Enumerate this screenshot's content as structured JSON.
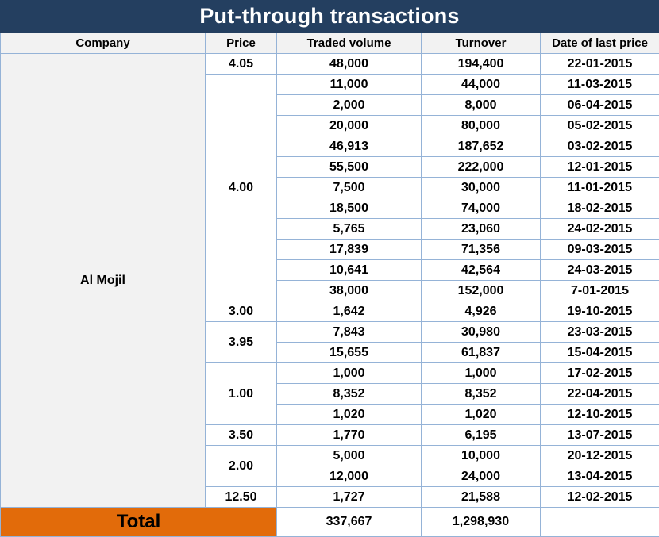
{
  "title": "Put-through transactions",
  "headers": {
    "company": "Company",
    "price": "Price",
    "volume": "Traded volume",
    "turnover": "Turnover",
    "date": "Date of last price"
  },
  "company": "Al Mojil",
  "groups": [
    {
      "price": "4.05",
      "rows": [
        [
          "48,000",
          "194,400",
          "22-01-2015"
        ]
      ]
    },
    {
      "price": "4.00",
      "rows": [
        [
          "11,000",
          "44,000",
          "11-03-2015"
        ],
        [
          "2,000",
          "8,000",
          "06-04-2015"
        ],
        [
          "20,000",
          "80,000",
          "05-02-2015"
        ],
        [
          "46,913",
          "187,652",
          "03-02-2015"
        ],
        [
          "55,500",
          "222,000",
          "12-01-2015"
        ],
        [
          "7,500",
          "30,000",
          "11-01-2015"
        ],
        [
          "18,500",
          "74,000",
          "18-02-2015"
        ],
        [
          "5,765",
          "23,060",
          "24-02-2015"
        ],
        [
          "17,839",
          "71,356",
          "09-03-2015"
        ],
        [
          "10,641",
          "42,564",
          "24-03-2015"
        ],
        [
          "38,000",
          "152,000",
          "7-01-2015"
        ]
      ]
    },
    {
      "price": "3.00",
      "rows": [
        [
          "1,642",
          "4,926",
          "19-10-2015"
        ]
      ]
    },
    {
      "price": "3.95",
      "rows": [
        [
          "7,843",
          "30,980",
          "23-03-2015"
        ],
        [
          "15,655",
          "61,837",
          "15-04-2015"
        ]
      ]
    },
    {
      "price": "1.00",
      "rows": [
        [
          "1,000",
          "1,000",
          "17-02-2015"
        ],
        [
          "8,352",
          "8,352",
          "22-04-2015"
        ],
        [
          "1,020",
          "1,020",
          "12-10-2015"
        ]
      ]
    },
    {
      "price": "3.50",
      "rows": [
        [
          "1,770",
          "6,195",
          "13-07-2015"
        ]
      ]
    },
    {
      "price": "2.00",
      "rows": [
        [
          "5,000",
          "10,000",
          "20-12-2015"
        ],
        [
          "12,000",
          "24,000",
          "13-04-2015"
        ]
      ]
    },
    {
      "price": "12.50",
      "rows": [
        [
          "1,727",
          "21,588",
          "12-02-2015"
        ]
      ]
    }
  ],
  "total": {
    "label": "Total",
    "volume": "337,667",
    "turnover": "1,298,930"
  },
  "colors": {
    "title_bg": "#243F60",
    "total_bg": "#E26B0A",
    "header_bg": "#F2F2F2",
    "border": "#95B3D7"
  }
}
